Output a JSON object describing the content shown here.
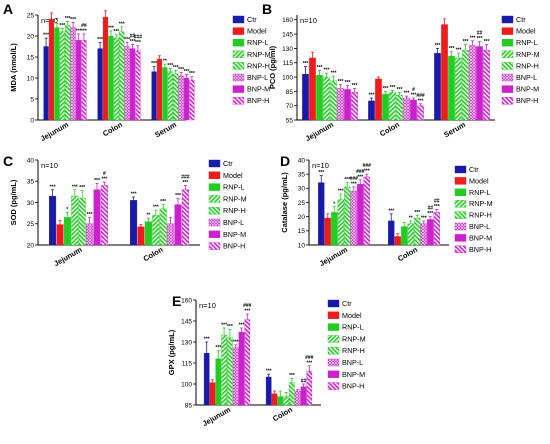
{
  "colors": {
    "ctr": "#1a1aa8",
    "model": "#ee1c1c",
    "rnp": "#22cc22",
    "bnp": "#cc22cc"
  },
  "legend": [
    "Ctr",
    "Model",
    "RNP-L",
    "RNP-M",
    "RNP-H",
    "BNP-L",
    "BNP-M",
    "BNP-H"
  ],
  "chart_data": [
    {
      "panel": "A",
      "type": "bar",
      "n_label": "n=10",
      "ylabel": "MDA (nmol/L)",
      "ylim": [
        0,
        25
      ],
      "yticks": [
        0,
        5,
        10,
        15,
        20,
        25
      ],
      "categories": [
        "Jejunum",
        "Colon",
        "Serum"
      ],
      "series": [
        {
          "name": "Ctr",
          "values": [
            17.5,
            17.0,
            11.5
          ],
          "errors": [
            2.0,
            1.5,
            1.2
          ],
          "sig": [
            "***",
            "***",
            "***"
          ]
        },
        {
          "name": "Model",
          "values": [
            24.0,
            24.5,
            14.5
          ],
          "errors": [
            1.5,
            1.5,
            0.8
          ],
          "sig": [
            "",
            "",
            ""
          ]
        },
        {
          "name": "RNP-L",
          "values": [
            22.0,
            20.0,
            12.5
          ],
          "errors": [
            1.0,
            1.2,
            0.8
          ],
          "sig": [
            "*",
            "***",
            "**"
          ]
        },
        {
          "name": "RNP-M",
          "values": [
            21.0,
            19.5,
            11.5
          ],
          "errors": [
            0.8,
            0.8,
            0.8
          ],
          "sig": [
            "***",
            "***",
            "***"
          ]
        },
        {
          "name": "RNP-H",
          "values": [
            22.5,
            21.0,
            11.0
          ],
          "errors": [
            1.0,
            1.2,
            0.8
          ],
          "sig": [
            "***",
            "***",
            "***"
          ]
        },
        {
          "name": "BNP-L",
          "values": [
            22.0,
            17.5,
            10.5
          ],
          "errors": [
            1.2,
            1.0,
            0.8
          ],
          "sig": [
            "***",
            "***",
            "***"
          ]
        },
        {
          "name": "BNP-M",
          "values": [
            19.0,
            17.0,
            10.0
          ],
          "errors": [
            1.5,
            1.0,
            0.8
          ],
          "sig": [
            "***",
            "##\n***",
            "***"
          ]
        },
        {
          "name": "BNP-H",
          "values": [
            19.0,
            16.5,
            9.5
          ],
          "errors": [
            1.5,
            1.2,
            0.8
          ],
          "sig": [
            "##\n***",
            "###\n***",
            "***"
          ]
        }
      ]
    },
    {
      "panel": "B",
      "type": "bar",
      "n_label": "n=10",
      "ylabel": "PCO (pg/ml)",
      "ylim": [
        55,
        165
      ],
      "yticks": [
        55,
        70,
        85,
        100,
        115,
        130,
        145,
        160
      ],
      "categories": [
        "Jejunum",
        "Colon",
        "Serum"
      ],
      "series": [
        {
          "name": "Ctr",
          "values": [
            103,
            75,
            125
          ],
          "errors": [
            8,
            3,
            5
          ],
          "sig": [
            "***",
            "***",
            "***"
          ]
        },
        {
          "name": "Model",
          "values": [
            120,
            98,
            155
          ],
          "errors": [
            6,
            2,
            6
          ],
          "sig": [
            "",
            "",
            ""
          ]
        },
        {
          "name": "RNP-L",
          "values": [
            102,
            82,
            122
          ],
          "errors": [
            5,
            3,
            5
          ],
          "sig": [
            "***",
            "***",
            "***"
          ]
        },
        {
          "name": "RNP-M",
          "values": [
            100,
            84,
            120
          ],
          "errors": [
            4,
            2,
            5
          ],
          "sig": [
            "***",
            "***",
            "***"
          ]
        },
        {
          "name": "RNP-H",
          "values": [
            96,
            81,
            128
          ],
          "errors": [
            5,
            3,
            6
          ],
          "sig": [
            "***",
            "***",
            "***"
          ]
        },
        {
          "name": "BNP-L",
          "values": [
            88,
            78,
            133
          ],
          "errors": [
            4,
            2,
            5
          ],
          "sig": [
            "***",
            "***",
            "***"
          ]
        },
        {
          "name": "BNP-M",
          "values": [
            87,
            76,
            132
          ],
          "errors": [
            4,
            2,
            5
          ],
          "sig": [
            "***",
            "#\n***",
            "##\n***"
          ]
        },
        {
          "name": "BNP-H",
          "values": [
            84,
            70,
            128
          ],
          "errors": [
            4,
            2,
            6
          ],
          "sig": [
            "***",
            "###\n***",
            "***"
          ]
        }
      ]
    },
    {
      "panel": "C",
      "type": "bar",
      "n_label": "n=10",
      "ylabel": "SOD (pg/mL)",
      "ylim": [
        20,
        40
      ],
      "yticks": [
        20,
        25,
        30,
        35,
        40
      ],
      "categories": [
        "Jejunum",
        "Colon"
      ],
      "series": [
        {
          "name": "Ctr",
          "values": [
            31.5,
            30.5
          ],
          "errors": [
            1.5,
            0.8
          ],
          "sig": [
            "***",
            "***"
          ]
        },
        {
          "name": "Model",
          "values": [
            24.8,
            24.3
          ],
          "errors": [
            1.0,
            0.5
          ],
          "sig": [
            "",
            ""
          ]
        },
        {
          "name": "RNP-L",
          "values": [
            26.5,
            25.5
          ],
          "errors": [
            1.2,
            0.8
          ],
          "sig": [
            "*",
            "**"
          ]
        },
        {
          "name": "RNP-M",
          "values": [
            31.5,
            27.0
          ],
          "errors": [
            1.5,
            1.2
          ],
          "sig": [
            "***",
            "***"
          ]
        },
        {
          "name": "RNP-H",
          "values": [
            31.0,
            28.5
          ],
          "errors": [
            1.8,
            1.0
          ],
          "sig": [
            "***",
            "***"
          ]
        },
        {
          "name": "BNP-L",
          "values": [
            25.0,
            25.0
          ],
          "errors": [
            1.5,
            1.5
          ],
          "sig": [
            "***",
            ""
          ]
        },
        {
          "name": "BNP-M",
          "values": [
            33.0,
            29.5
          ],
          "errors": [
            1.5,
            1.5
          ],
          "sig": [
            "***",
            "***"
          ]
        },
        {
          "name": "BNP-H",
          "values": [
            34.0,
            33.0
          ],
          "errors": [
            0.8,
            1.0
          ],
          "sig": [
            "#\n***",
            "###\n***"
          ]
        }
      ]
    },
    {
      "panel": "D",
      "type": "bar",
      "n_label": "n=10",
      "ylabel": "Catalase (pg/mL)",
      "ylim": [
        10,
        40
      ],
      "yticks": [
        10,
        15,
        20,
        25,
        30,
        35,
        40
      ],
      "categories": [
        "Jejunum",
        "Colon"
      ],
      "series": [
        {
          "name": "Ctr",
          "values": [
            32,
            18.5
          ],
          "errors": [
            2.5,
            2.5
          ],
          "sig": [
            "***",
            "***"
          ]
        },
        {
          "name": "Model",
          "values": [
            19.5,
            13
          ],
          "errors": [
            1.5,
            1.0
          ],
          "sig": [
            "",
            ""
          ]
        },
        {
          "name": "RNP-L",
          "values": [
            21.5,
            16.5
          ],
          "errors": [
            2.0,
            1.5
          ],
          "sig": [
            "*",
            ""
          ]
        },
        {
          "name": "RNP-M",
          "values": [
            26,
            17.5
          ],
          "errors": [
            2.0,
            1.0
          ],
          "sig": [
            "***",
            "**"
          ]
        },
        {
          "name": "RNP-H",
          "values": [
            30.5,
            19.5
          ],
          "errors": [
            1.5,
            1.0
          ],
          "sig": [
            "***",
            "***"
          ]
        },
        {
          "name": "BNP-L",
          "values": [
            29,
            17.5
          ],
          "errors": [
            1.5,
            1.0
          ],
          "sig": [
            "###\n***",
            "***"
          ]
        },
        {
          "name": "BNP-M",
          "values": [
            31.5,
            19
          ],
          "errors": [
            1.5,
            1.0
          ],
          "sig": [
            "###\n***",
            "##\n***"
          ]
        },
        {
          "name": "BNP-H",
          "values": [
            34,
            21.5
          ],
          "errors": [
            1.0,
            1.0
          ],
          "sig": [
            "###\n***",
            "##\n***"
          ]
        }
      ]
    },
    {
      "panel": "E",
      "type": "bar",
      "n_label": "n=10",
      "ylabel": "GPX (pg/mL)",
      "ylim": [
        85,
        160
      ],
      "yticks": [
        85,
        100,
        115,
        130,
        145,
        160
      ],
      "categories": [
        "Jejunum",
        "Colon"
      ],
      "series": [
        {
          "name": "Ctr",
          "values": [
            122,
            105
          ],
          "errors": [
            8,
            2
          ],
          "sig": [
            "***",
            "***"
          ]
        },
        {
          "name": "Model",
          "values": [
            101,
            93
          ],
          "errors": [
            2,
            2
          ],
          "sig": [
            "",
            ""
          ]
        },
        {
          "name": "RNP-L",
          "values": [
            118,
            91
          ],
          "errors": [
            6,
            4
          ],
          "sig": [
            "***",
            ""
          ]
        },
        {
          "name": "RNP-M",
          "values": [
            135,
            91
          ],
          "errors": [
            5,
            3
          ],
          "sig": [
            "***",
            ""
          ]
        },
        {
          "name": "RNP-H",
          "values": [
            133,
            101
          ],
          "errors": [
            6,
            3
          ],
          "sig": [
            "***",
            "***"
          ]
        },
        {
          "name": "BNP-L",
          "values": [
            126,
            95
          ],
          "errors": [
            2,
            1
          ],
          "sig": [
            "***",
            ""
          ]
        },
        {
          "name": "BNP-M",
          "values": [
            137,
            98
          ],
          "errors": [
            3,
            2
          ],
          "sig": [
            "***",
            "##"
          ]
        },
        {
          "name": "BNP-H",
          "values": [
            146,
            109
          ],
          "errors": [
            4,
            4
          ],
          "sig": [
            "###\n***",
            "###\n***"
          ]
        }
      ]
    }
  ]
}
